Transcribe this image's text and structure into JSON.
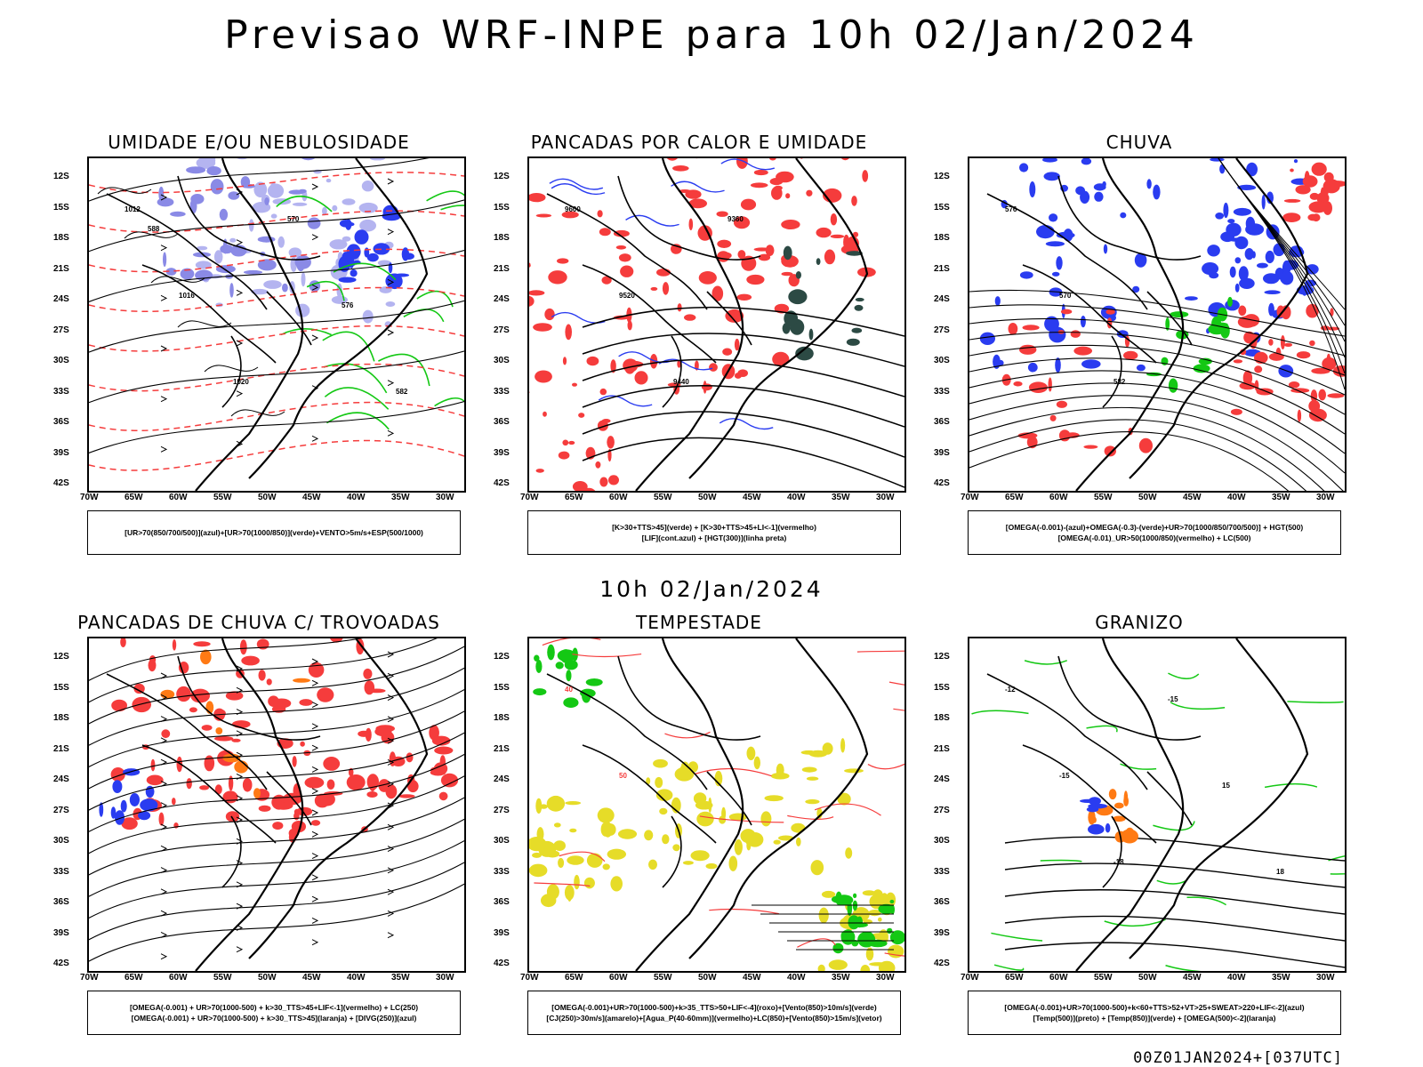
{
  "title": "Previsao WRF-INPE  para 10h 02/Jan/2024",
  "subtitle": "10h 02/Jan/2024",
  "footer": "00Z01JAN2024+[037UTC]",
  "axes": {
    "lat_ticks": [
      "12S",
      "15S",
      "18S",
      "21S",
      "24S",
      "27S",
      "30S",
      "33S",
      "36S",
      "39S",
      "42S"
    ],
    "lon_ticks": [
      "70W",
      "65W",
      "60W",
      "55W",
      "50W",
      "45W",
      "40W",
      "35W",
      "30W"
    ]
  },
  "colors": {
    "red": "#f53c3c",
    "blue": "#2a3cf0",
    "green": "#14c814",
    "lavender": "#b4b4f0",
    "yellow": "#e6dc28",
    "dark_teal": "#2c4a44",
    "orange": "#ff7a14"
  },
  "panels": [
    {
      "title": "UMIDADE E/OU NEBULOSIDADE",
      "legend": [
        "[UR>70(850/700/500)](azul)+[UR>70(1000/850)](verde)+VENTO>5m/s+ESP(500/1000)"
      ],
      "labels": [
        "1012",
        "1016",
        "1020",
        "570",
        "576",
        "582",
        "588"
      ]
    },
    {
      "title": "PANCADAS POR CALOR E UMIDADE",
      "legend": [
        "[K>30+TTS>45](verde) + [K>30+TTS>45+LI<-1](vermelho)",
        "[LIF](cont.azul) + [HGT(300)](linha preta)"
      ],
      "labels": [
        "9600",
        "9520",
        "9440",
        "9360"
      ]
    },
    {
      "title": "CHUVA",
      "legend": [
        "[OMEGA(-0.001)-(azul)+OMEGA(-0.3)-(verde)+UR>70(1000/850/700/500)] + HGT(500)",
        "[OMEGA(-0.01)_UR>50(1000/850)(vermelho) + LC(500)"
      ],
      "labels": [
        "576",
        "570",
        "582"
      ]
    },
    {
      "title": "PANCADAS DE CHUVA C/ TROVOADAS",
      "legend": [
        "[OMEGA(-0.001) + UR>70(1000-500) + k>30_TTS>45+LIF<-1](vermelho) + LC(250)",
        "[OMEGA(-0.001) + UR>70(1000-500) + k>30_TTS>45](laranja) + [DIVG(250)](azul)"
      ],
      "labels": []
    },
    {
      "title": "TEMPESTADE",
      "legend": [
        "[OMEGA(-0.001)+UR>70(1000-500)+k>35_TTS>50+LIF<-4](roxo)+[Vento(850)>10m/s](verde)",
        "[CJ(250)>30m/s](amarelo)+[Agua_P(40-60mm)](vermelho)+LC(850)+[Vento(850)>15m/s](vetor)"
      ],
      "labels": [
        "40",
        "50"
      ]
    },
    {
      "title": "GRANIZO",
      "legend": [
        "[OMEGA(-0.001)+UR>70(1000-500)+k<60+TTS>52+VT>25+SWEAT>220+LIF<-2](azul)",
        "[Temp(500)](preto) + [Temp(850)](verde) + [OMEGA(500)<-2](laranja)"
      ],
      "labels": [
        "-12",
        "-15",
        "-18",
        "-15",
        "15",
        "18"
      ]
    }
  ]
}
